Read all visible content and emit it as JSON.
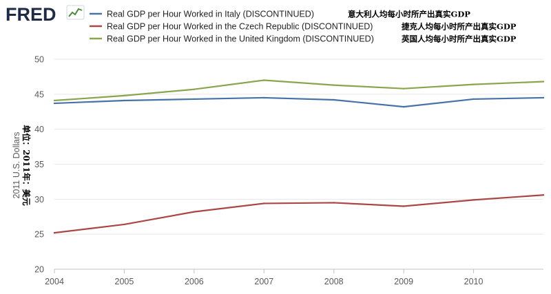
{
  "brand": {
    "logo_text": "FRED",
    "logo_color": "#1f2a44",
    "logo_accent": "#4a8a3a"
  },
  "chart_data": {
    "type": "line",
    "title": "",
    "xlabel": "",
    "ylabel": "2011 U.S. Dollars",
    "ylabel_cn": "单位：2011年：美元",
    "x": [
      2004,
      2005,
      2006,
      2007,
      2008,
      2009,
      2010,
      2011
    ],
    "xlim": [
      2004,
      2011
    ],
    "ylim": [
      20,
      50
    ],
    "xticks": [
      {
        "value": 2004,
        "label": "2004"
      },
      {
        "value": 2005,
        "label": "2005"
      },
      {
        "value": 2006,
        "label": "2006"
      },
      {
        "value": 2007,
        "label": "2007"
      },
      {
        "value": 2008,
        "label": "2008"
      },
      {
        "value": 2009,
        "label": "2009"
      },
      {
        "value": 2010,
        "label": "2010"
      }
    ],
    "yticks": [
      {
        "value": 20,
        "label": "20"
      },
      {
        "value": 25,
        "label": "25"
      },
      {
        "value": 30,
        "label": "30"
      },
      {
        "value": 35,
        "label": "35"
      },
      {
        "value": 40,
        "label": "40"
      },
      {
        "value": 45,
        "label": "45"
      },
      {
        "value": 50,
        "label": "50"
      }
    ],
    "grid": "horizontal",
    "legend_position": "top",
    "series": [
      {
        "name": "Real GDP per Hour Worked in Italy (DISCONTINUED)",
        "name_cn": "意大利人均每小时所产出真实GDP",
        "color": "#4572a7",
        "values": [
          43.7,
          44.1,
          44.3,
          44.5,
          44.2,
          43.2,
          44.3,
          44.5
        ]
      },
      {
        "name": "Real GDP per Hour Worked in the Czech Republic (DISCONTINUED)",
        "name_cn": "捷克人均每小时所产出真实GDP",
        "color": "#aa4643",
        "values": [
          25.2,
          26.4,
          28.2,
          29.4,
          29.5,
          29.0,
          29.9,
          30.6
        ]
      },
      {
        "name": "Real GDP per Hour Worked in the United Kingdom (DISCONTINUED)",
        "name_cn": "英国人均每小时所产出真实GDP",
        "color": "#89a54e",
        "values": [
          44.1,
          44.8,
          45.7,
          47.0,
          46.3,
          45.8,
          46.4,
          46.8
        ]
      }
    ]
  }
}
